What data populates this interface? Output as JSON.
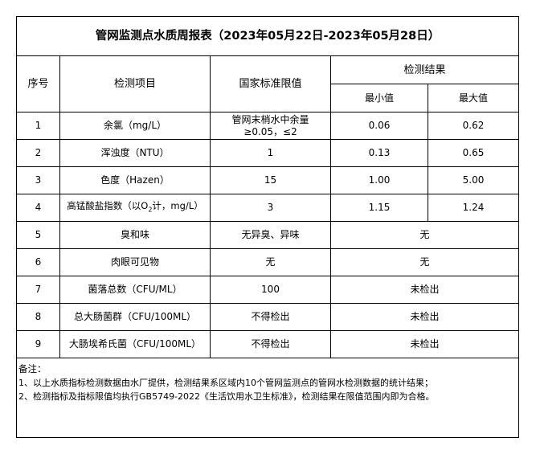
{
  "title": "管网监测点水质周报表（2023年05月22日-2023年05月28日）",
  "headers": {
    "seq": "序号",
    "item": "检测项目",
    "standard": "国家标准限值",
    "results": "检测结果",
    "min": "最小值",
    "max": "最大值"
  },
  "rows": [
    {
      "seq": "1",
      "item": "余氯（mg/L）",
      "standard": "管网末梢水中余量≥0.05，≤2",
      "min": "0.06",
      "max": "0.62"
    },
    {
      "seq": "2",
      "item": "浑浊度（NTU）",
      "standard": "1",
      "min": "0.13",
      "max": "0.65"
    },
    {
      "seq": "3",
      "item": "色度（Hazen）",
      "standard": "15",
      "min": "1.00",
      "max": "5.00"
    },
    {
      "seq": "4",
      "item_pre": "高锰酸盐指数（以O",
      "item_sub": "2",
      "item_post": "计，mg/L）",
      "standard": "3",
      "min": "1.15",
      "max": "1.24"
    },
    {
      "seq": "5",
      "item": "臭和味",
      "standard": "无异臭、异味",
      "result": "无"
    },
    {
      "seq": "6",
      "item": "肉眼可见物",
      "standard": "无",
      "result": "无"
    },
    {
      "seq": "7",
      "item": "菌落总数（CFU/ML）",
      "standard": "100",
      "result": "未检出"
    },
    {
      "seq": "8",
      "item": "总大肠菌群（CFU/100ML）",
      "standard": "不得检出",
      "result": "未检出"
    },
    {
      "seq": "9",
      "item": "大肠埃希氏菌（CFU/100ML）",
      "standard": "不得检出",
      "result": "未检出"
    }
  ],
  "notes": {
    "label": "备注：",
    "line1": "1、以上水质指标检测数据由水厂提供，检测结果系区域内10个管网监测点的管网水检测数据的统计结果；",
    "line2": "2、检测指标及指标限值均执行GB5749-2022《生活饮用水卫生标准》，检测结果在限值范围内即为合格。"
  }
}
